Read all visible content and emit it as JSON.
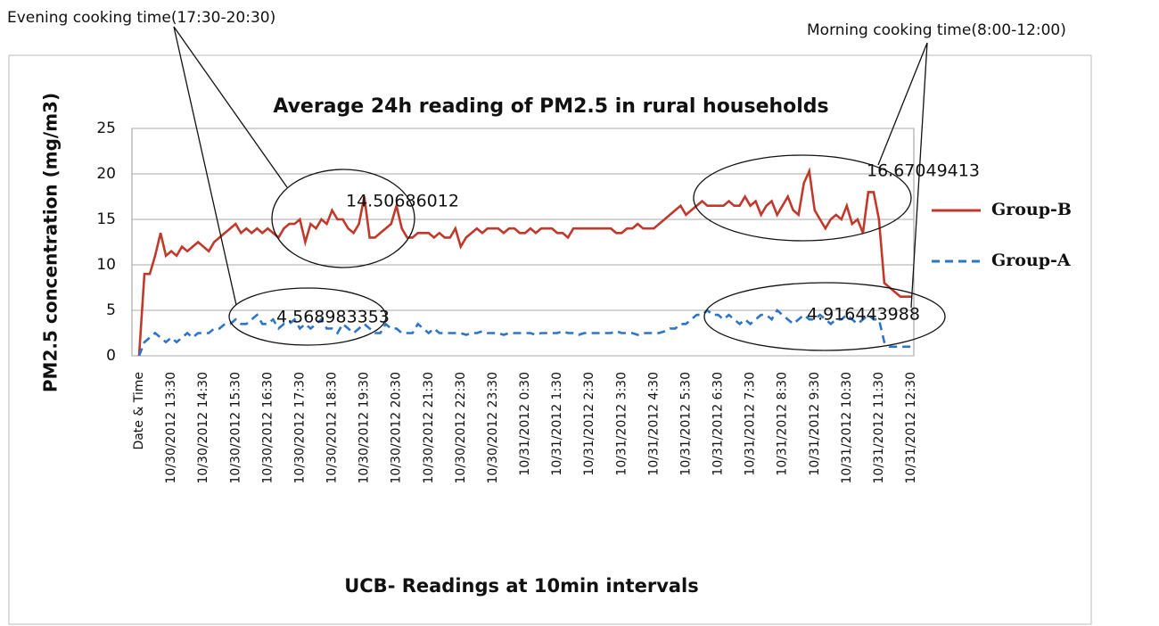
{
  "chart_data": {
    "type": "line",
    "title": "Average 24h reading of PM2.5 in rural households",
    "xlabel": "UCB- Readings at 10min intervals",
    "ylabel": "PM2.5 concentration (mg/m3)",
    "ylim": [
      0,
      25
    ],
    "yticks": [
      0,
      5,
      10,
      15,
      20,
      25
    ],
    "grid": true,
    "legend": "right",
    "annotations": [
      "Evening cooking time(17:30-20:30)",
      "Morning cooking time(8:00-12:00)",
      "14.50686012",
      "4.568983353",
      "16.67049413",
      "4.916443988"
    ],
    "categories": [
      "Date & Time",
      null,
      null,
      null,
      null,
      null,
      "10/30/2012 13:30",
      null,
      null,
      null,
      null,
      null,
      "10/30/2012 14:30",
      null,
      null,
      null,
      null,
      null,
      "10/30/2012 15:30",
      null,
      null,
      null,
      null,
      null,
      "10/30/2012 16:30",
      null,
      null,
      null,
      null,
      null,
      "10/30/2012 17:30",
      null,
      null,
      null,
      null,
      null,
      "10/30/2012 18:30",
      null,
      null,
      null,
      null,
      null,
      "10/30/2012 19:30",
      null,
      null,
      null,
      null,
      null,
      "10/30/2012 20:30",
      null,
      null,
      null,
      null,
      null,
      "10/30/2012 21:30",
      null,
      null,
      null,
      null,
      null,
      "10/30/2012 22:30",
      null,
      null,
      null,
      null,
      null,
      "10/30/2012 23:30",
      null,
      null,
      null,
      null,
      null,
      "10/31/2012 0:30",
      null,
      null,
      null,
      null,
      null,
      "10/31/2012 1:30",
      null,
      null,
      null,
      null,
      null,
      "10/31/2012 2:30",
      null,
      null,
      null,
      null,
      null,
      "10/31/2012 3:30",
      null,
      null,
      null,
      null,
      null,
      "10/31/2012 4:30",
      null,
      null,
      null,
      null,
      null,
      "10/31/2012 5:30",
      null,
      null,
      null,
      null,
      null,
      "10/31/2012 6:30",
      null,
      null,
      null,
      null,
      null,
      "10/31/2012 7:30",
      null,
      null,
      null,
      null,
      null,
      "10/31/2012 8:30",
      null,
      null,
      null,
      null,
      null,
      "10/31/2012 9:30",
      null,
      null,
      null,
      null,
      null,
      "10/31/2012 10:30",
      null,
      null,
      null,
      null,
      null,
      "10/31/2012 11:30",
      null,
      null,
      null,
      null,
      null,
      "10/31/2012 12:30"
    ],
    "series": [
      {
        "name": "Group-B",
        "color": "#c0392b",
        "line_style": "solid",
        "values": [
          0,
          9,
          9,
          11,
          13.5,
          11,
          11.5,
          11,
          12,
          11.5,
          12,
          12.5,
          12,
          11.5,
          12.5,
          13,
          13.5,
          14,
          14.5,
          13.5,
          14,
          13.5,
          14,
          13.5,
          14,
          13.5,
          13,
          14,
          14.5,
          14.5,
          15,
          12.5,
          14.5,
          14,
          15,
          14.5,
          16,
          15,
          15,
          14,
          13.5,
          14.5,
          17.5,
          13,
          13,
          13.5,
          14,
          14.5,
          16.5,
          14,
          13,
          13,
          13.5,
          13.5,
          13.5,
          13,
          13.5,
          13,
          13,
          14,
          12,
          13,
          13.5,
          14,
          13.5,
          14,
          14,
          14,
          13.5,
          14,
          14,
          13.5,
          13.5,
          14,
          13.5,
          14,
          14,
          14,
          13.5,
          13.5,
          13,
          14,
          14,
          14,
          14,
          14,
          14,
          14,
          14,
          13.5,
          13.5,
          14,
          14,
          14.5,
          14,
          14,
          14,
          14.5,
          15,
          15.5,
          16,
          16.5,
          15.5,
          16,
          16.5,
          17,
          16.5,
          16.5,
          16.5,
          16.5,
          17,
          16.5,
          16.5,
          17.5,
          16.5,
          17,
          15.5,
          16.5,
          17,
          15.5,
          16.5,
          17.5,
          16,
          15.5,
          19,
          20.3,
          16,
          15,
          14,
          15,
          15.5,
          15,
          16.5,
          14.5,
          15,
          13.5,
          18,
          18,
          15,
          8,
          7.5,
          7,
          6.5,
          6.5,
          6.5
        ]
      },
      {
        "name": "Group-A",
        "color": "#2e75c8",
        "line_style": "dashed",
        "values": [
          0,
          1.5,
          2,
          2.5,
          2,
          1.5,
          2,
          1.5,
          2,
          2.5,
          2,
          2.5,
          2.5,
          2.5,
          3,
          3,
          3.5,
          3.5,
          4,
          3.5,
          3.5,
          4,
          4.5,
          3.5,
          3.5,
          4,
          3,
          3.5,
          3.5,
          4,
          3,
          3.5,
          3,
          3.5,
          4,
          3,
          3,
          2.5,
          3.5,
          3,
          2.5,
          3,
          3.5,
          3,
          2.5,
          2.5,
          3.5,
          3,
          3,
          2.5,
          2.5,
          2.5,
          3.5,
          3,
          2.5,
          3,
          2.5,
          2.5,
          2.5,
          2.5,
          2.5,
          2.3,
          2.5,
          2.5,
          2.7,
          2.5,
          2.5,
          2.5,
          2.3,
          2.5,
          2.5,
          2.5,
          2.5,
          2.5,
          2.3,
          2.5,
          2.5,
          2.5,
          2.5,
          2.7,
          2.5,
          2.5,
          2.3,
          2.5,
          2.5,
          2.5,
          2.5,
          2.5,
          2.5,
          2.7,
          2.5,
          2.5,
          2.5,
          2.3,
          2.5,
          2.5,
          2.5,
          2.5,
          2.7,
          3,
          3,
          3.5,
          3.5,
          4,
          4.5,
          4.5,
          5,
          4.5,
          4.5,
          4,
          4.5,
          4,
          3.5,
          4,
          3.5,
          4,
          4.5,
          4.5,
          4,
          5,
          4.5,
          4,
          3.5,
          4,
          4.5,
          4,
          4,
          4.5,
          4,
          3.5,
          4,
          4,
          4.5,
          4,
          3.5,
          4,
          4.5,
          4,
          4,
          1.5,
          1,
          1,
          1,
          1,
          1
        ]
      }
    ]
  }
}
